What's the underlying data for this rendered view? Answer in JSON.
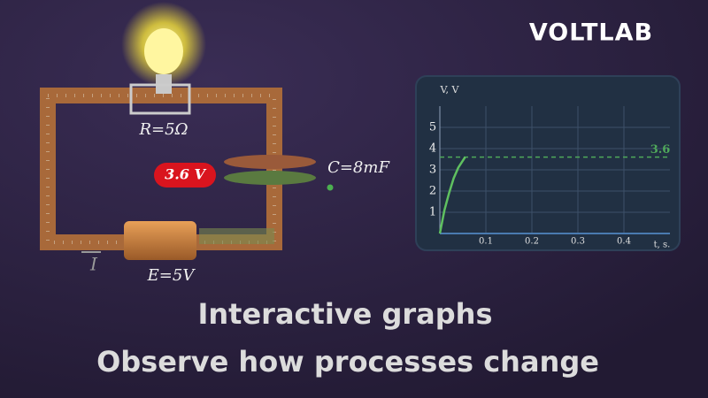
{
  "brand": "VOLTLAB",
  "circuit": {
    "resistor": "R=5Ω",
    "voltmeter": "3.6 V",
    "capacitor": "C=8mF",
    "battery": "E=5V",
    "current": "I"
  },
  "headline": [
    "Interactive graphs",
    "Observe how processes change"
  ],
  "chart_data": {
    "type": "line",
    "ylabel": "V, V",
    "xlabel": "t, s.",
    "x": [
      0,
      0.01,
      0.02,
      0.03,
      0.04,
      0.055
    ],
    "values": [
      0,
      1.1,
      1.9,
      2.6,
      3.1,
      3.6
    ],
    "color": "#5fc060",
    "reference_line": {
      "value": 3.6,
      "color": "#4fa85a"
    },
    "xlim": [
      0,
      0.5
    ],
    "ylim": [
      0,
      6
    ],
    "xticks": [
      0.1,
      0.2,
      0.3,
      0.4
    ],
    "yticks": [
      1,
      2,
      3,
      4,
      5
    ],
    "grid": true
  }
}
